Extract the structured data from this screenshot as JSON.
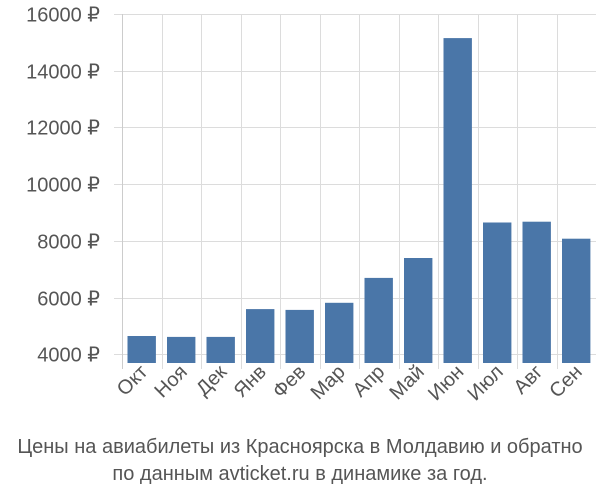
{
  "chart_data": {
    "type": "bar",
    "categories": [
      "Окт",
      "Ноя",
      "Дек",
      "Янв",
      "Фев",
      "Мар",
      "Апр",
      "Май",
      "Июн",
      "Июл",
      "Авг",
      "Сен"
    ],
    "values": [
      4650,
      4620,
      4620,
      5600,
      5570,
      5820,
      6700,
      7400,
      15150,
      8650,
      8680,
      8080
    ],
    "y_ticks": [
      4000,
      6000,
      8000,
      10000,
      12000,
      14000,
      16000
    ],
    "y_tick_labels": [
      "4000 ₽",
      "6000 ₽",
      "8000 ₽",
      "10000 ₽",
      "12000 ₽",
      "14000 ₽",
      "16000 ₽"
    ],
    "ylim": [
      3700,
      16000
    ],
    "grid": true,
    "bar_color": "#4a76a8"
  },
  "caption": {
    "line1": "Цены на авиабилеты из Красноярска в Молдавию и обратно",
    "line2": "по данным avticket.ru в динамике за год."
  }
}
